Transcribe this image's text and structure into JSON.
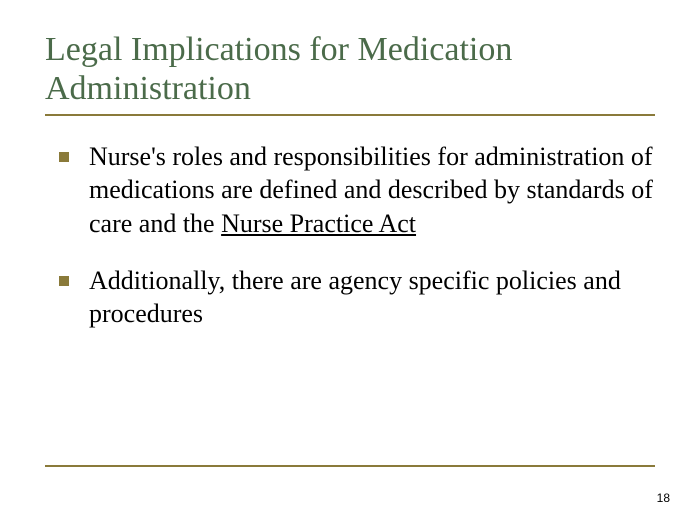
{
  "title_color": "#4b6b4a",
  "accent_color": "#8a7a3a",
  "text_color": "#000000",
  "background_color": "#ffffff",
  "title": "Legal Implications for Medication Administration",
  "bullets": [
    {
      "pre": "Nurse's roles and responsibilities for administration of medications are defined and described by standards of care and the ",
      "underlined": "Nurse Practice Act"
    },
    {
      "pre": "Additionally, there are agency specific policies and procedures",
      "underlined": ""
    }
  ],
  "page_number": "18"
}
